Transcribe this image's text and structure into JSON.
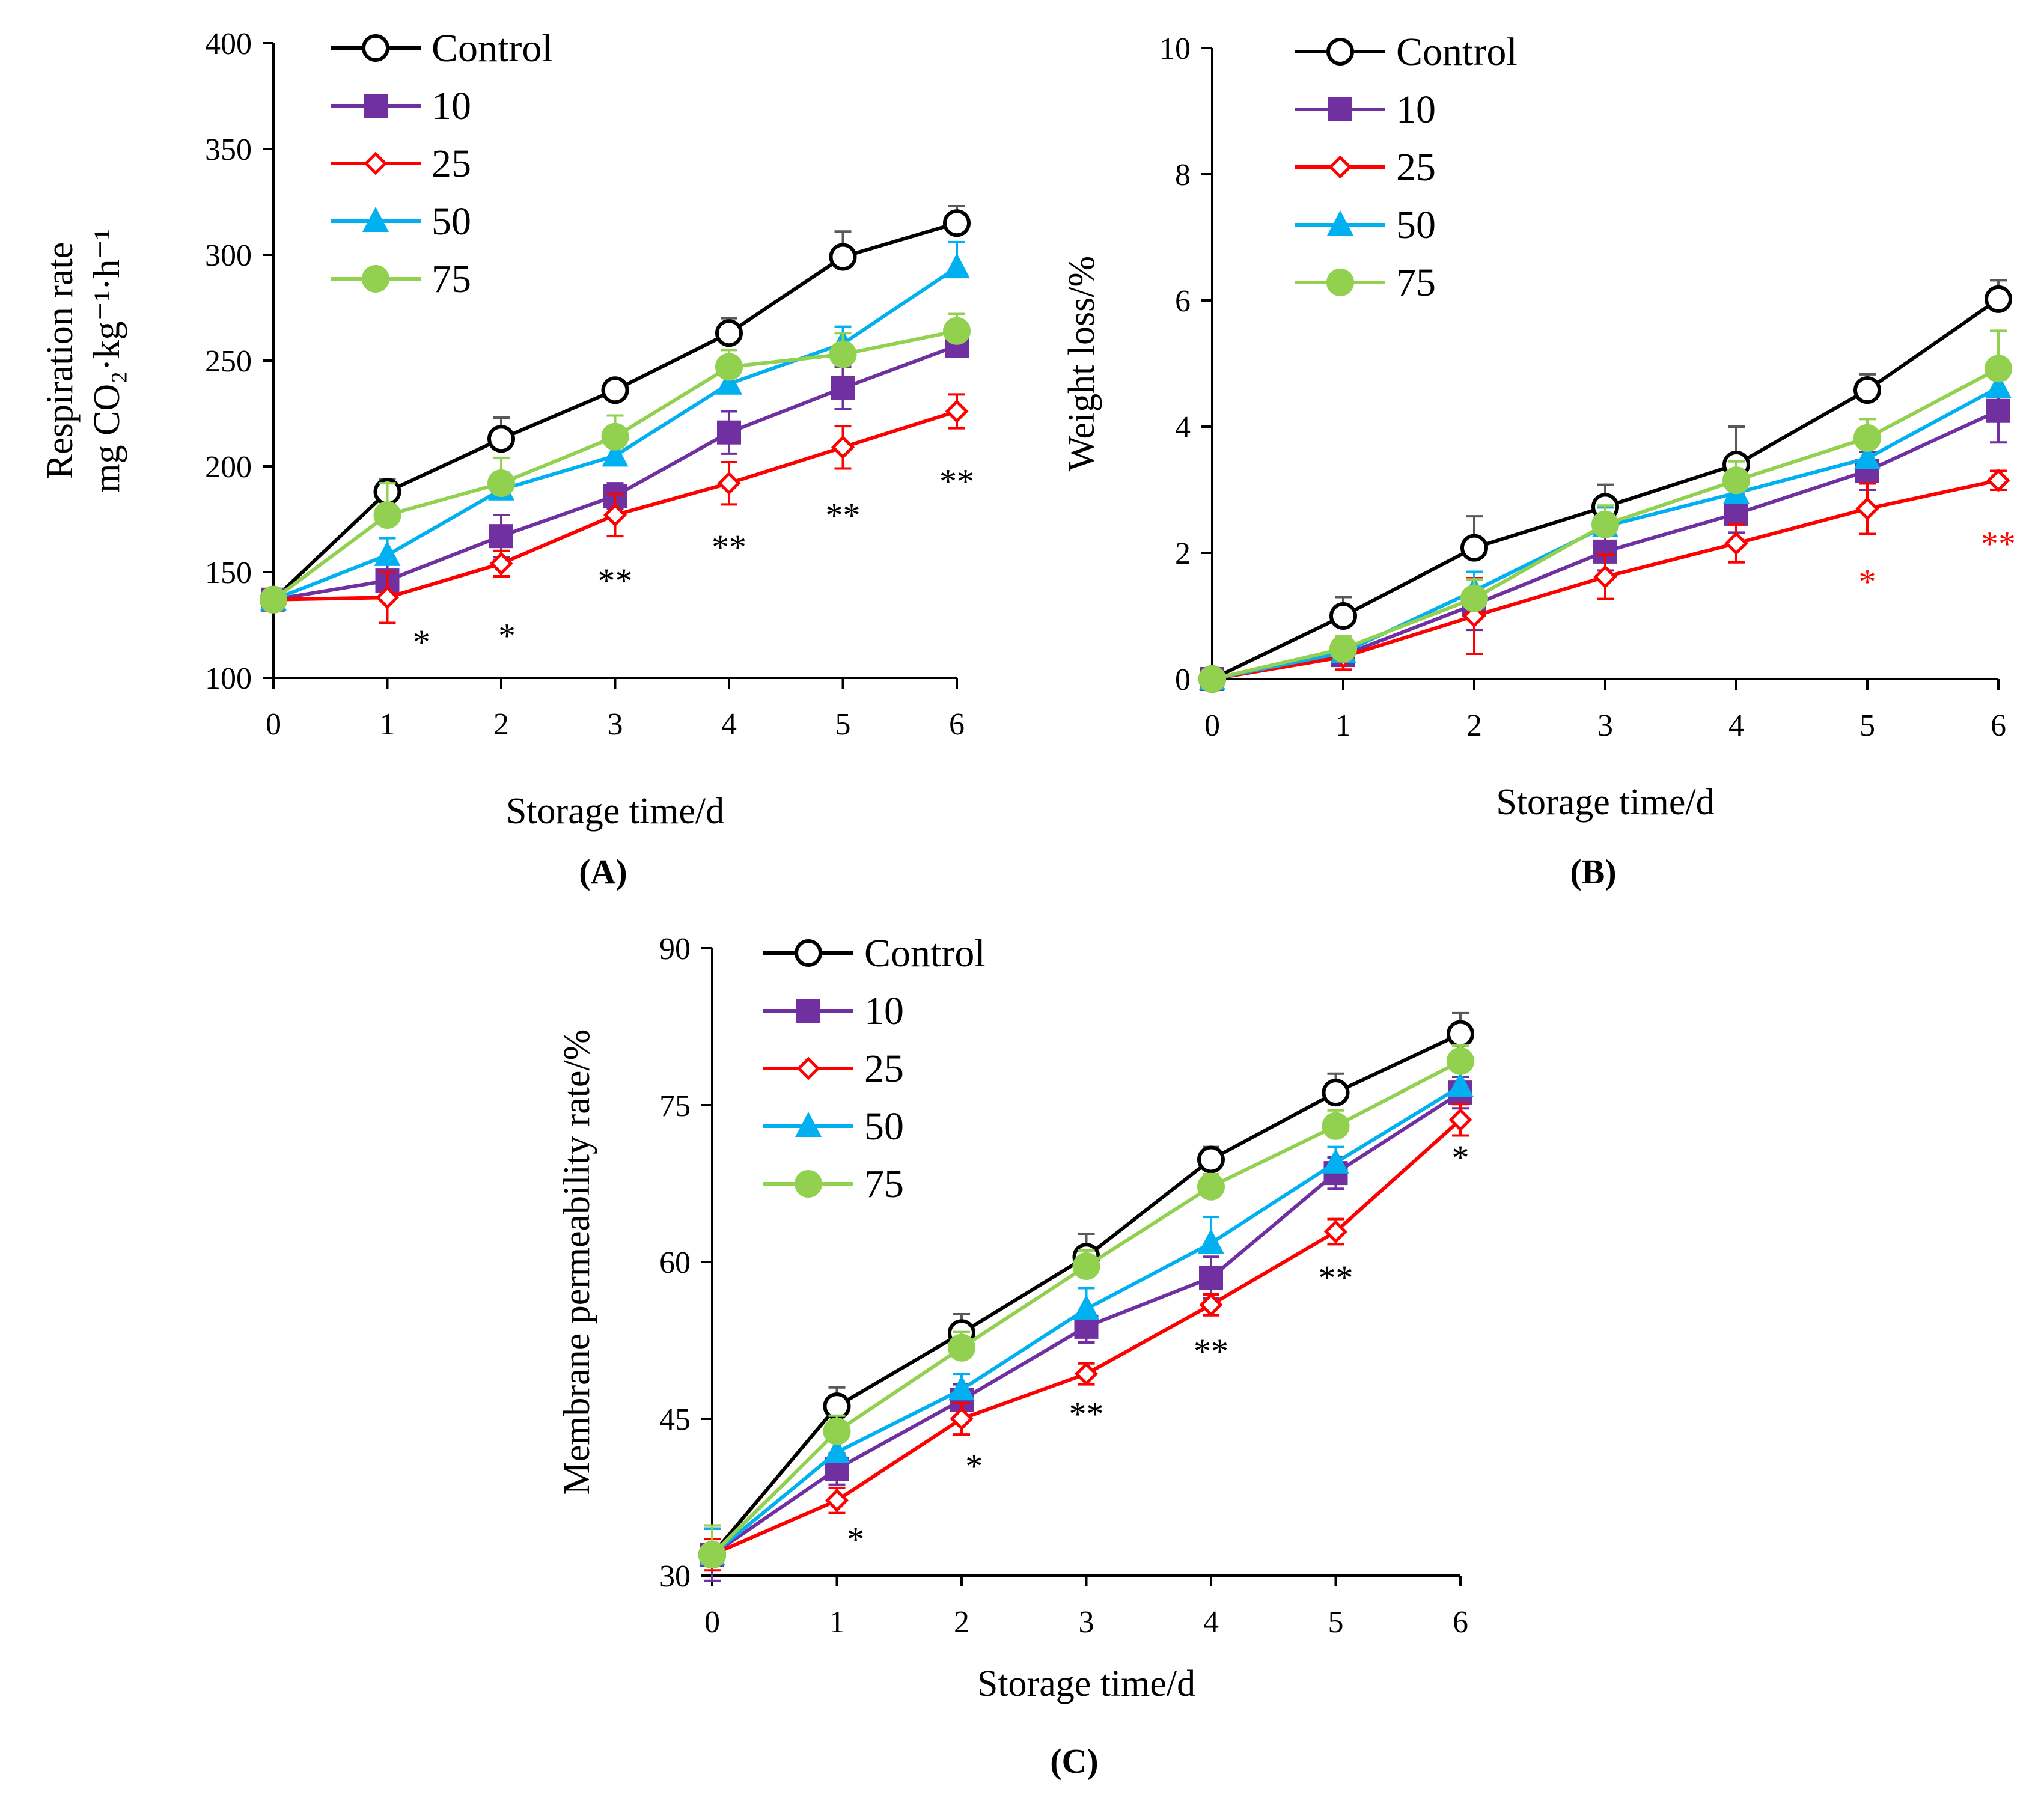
{
  "chart_data": [
    {
      "type": "line",
      "panel_label": "(A)",
      "xlabel": "Storage time/d",
      "ylabel_line1": "Respiration rate",
      "ylabel_line2": "mg CO₂·kg⁻¹·h⁻¹",
      "x": [
        0,
        1,
        2,
        3,
        4,
        5,
        6
      ],
      "xlim": [
        0,
        6
      ],
      "ylim": [
        100,
        400
      ],
      "yticks": [
        100,
        150,
        200,
        250,
        300,
        350,
        400
      ],
      "legend_position": "top-left",
      "series": [
        {
          "name": "Control",
          "color": "#000000",
          "marker": "circle-open",
          "values": [
            137,
            188,
            213,
            236,
            263,
            299,
            315
          ],
          "errors": [
            4,
            6,
            10,
            4,
            7,
            12,
            8
          ]
        },
        {
          "name": "10",
          "color": "#7030A0",
          "marker": "square",
          "values": [
            137,
            146,
            167,
            186,
            216,
            237,
            257
          ],
          "errors": [
            4,
            8,
            10,
            6,
            10,
            10,
            5
          ]
        },
        {
          "name": "25",
          "color": "#FF0000",
          "marker": "diamond-open",
          "values": [
            137,
            138,
            154,
            177,
            192,
            209,
            226
          ],
          "errors": [
            4,
            12,
            6,
            10,
            10,
            10,
            8
          ]
        },
        {
          "name": "50",
          "color": "#00B0F0",
          "marker": "triangle",
          "values": [
            137,
            158,
            189,
            205,
            239,
            258,
            294
          ],
          "errors": [
            4,
            8,
            8,
            6,
            8,
            8,
            12
          ]
        },
        {
          "name": "75",
          "color": "#92D050",
          "marker": "circle",
          "values": [
            137,
            177,
            192,
            214,
            247,
            253,
            264
          ],
          "errors": [
            4,
            15,
            12,
            10,
            8,
            10,
            8
          ]
        }
      ],
      "annotations": [
        {
          "text": "*",
          "x": 1.3,
          "y": 117,
          "color": "#000000"
        },
        {
          "text": "*",
          "x": 2.05,
          "y": 120,
          "color": "#000000"
        },
        {
          "text": "**",
          "x": 3.0,
          "y": 146,
          "color": "#000000"
        },
        {
          "text": "**",
          "x": 4.0,
          "y": 162,
          "color": "#000000"
        },
        {
          "text": "**",
          "x": 5.0,
          "y": 177,
          "color": "#000000"
        },
        {
          "text": "**",
          "x": 6.0,
          "y": 193,
          "color": "#000000"
        }
      ]
    },
    {
      "type": "line",
      "panel_label": "(B)",
      "xlabel": "Storage time/d",
      "ylabel_line1": "Weight loss/%",
      "x": [
        0,
        1,
        2,
        3,
        4,
        5,
        6
      ],
      "xlim": [
        0,
        6
      ],
      "ylim": [
        0,
        10
      ],
      "yticks": [
        0,
        2,
        4,
        6,
        8,
        10
      ],
      "legend_position": "top-left",
      "series": [
        {
          "name": "Control",
          "color": "#000000",
          "marker": "circle-open",
          "values": [
            0,
            1.0,
            2.08,
            2.73,
            3.4,
            4.58,
            6.02
          ],
          "errors": [
            0,
            0.3,
            0.5,
            0.35,
            0.6,
            0.25,
            0.3
          ]
        },
        {
          "name": "10",
          "color": "#7030A0",
          "marker": "square",
          "values": [
            0,
            0.38,
            1.18,
            2.02,
            2.62,
            3.3,
            4.25
          ],
          "errors": [
            0,
            0.15,
            0.4,
            0.3,
            0.3,
            0.3,
            0.5
          ]
        },
        {
          "name": "25",
          "color": "#FF0000",
          "marker": "diamond-open",
          "values": [
            0,
            0.35,
            1.0,
            1.62,
            2.15,
            2.7,
            3.15
          ],
          "errors": [
            0,
            0.2,
            0.6,
            0.35,
            0.3,
            0.4,
            0.15
          ]
        },
        {
          "name": "50",
          "color": "#00B0F0",
          "marker": "triangle",
          "values": [
            0,
            0.42,
            1.4,
            2.42,
            2.95,
            3.5,
            4.62
          ],
          "errors": [
            0,
            0.15,
            0.3,
            0.3,
            0.3,
            0.3,
            0.35
          ]
        },
        {
          "name": "75",
          "color": "#92D050",
          "marker": "circle",
          "values": [
            0,
            0.48,
            1.28,
            2.45,
            3.15,
            3.82,
            4.92
          ],
          "errors": [
            0,
            0.2,
            0.3,
            0.3,
            0.3,
            0.3,
            0.6
          ]
        }
      ],
      "annotations": [
        {
          "text": "*",
          "x": 5.0,
          "y": 1.55,
          "color": "#FF0000"
        },
        {
          "text": "**",
          "x": 6.0,
          "y": 2.15,
          "color": "#FF0000"
        }
      ]
    },
    {
      "type": "line",
      "panel_label": "(C)",
      "xlabel": "Storage time/d",
      "ylabel_line1": "Membrane permeability rate/%",
      "x": [
        0,
        1,
        2,
        3,
        4,
        5,
        6
      ],
      "xlim": [
        0,
        6
      ],
      "ylim": [
        30,
        90
      ],
      "yticks": [
        30,
        45,
        60,
        75,
        90
      ],
      "legend_position": "top-left",
      "series": [
        {
          "name": "Control",
          "color": "#000000",
          "marker": "circle-open",
          "values": [
            32,
            46.2,
            53.2,
            60.5,
            69.8,
            76.2,
            81.8
          ],
          "errors": [
            2.5,
            1.8,
            1.8,
            2.2,
            1.2,
            1.8,
            2.0
          ]
        },
        {
          "name": "10",
          "color": "#7030A0",
          "marker": "square",
          "values": [
            32,
            40.2,
            46.8,
            53.8,
            58.5,
            68.5,
            76.2
          ],
          "errors": [
            2.5,
            1.5,
            1.5,
            1.5,
            2.0,
            1.5,
            1.5
          ]
        },
        {
          "name": "25",
          "color": "#FF0000",
          "marker": "diamond-open",
          "values": [
            32,
            37.2,
            45.0,
            49.3,
            55.9,
            62.9,
            73.6
          ],
          "errors": [
            1.5,
            1.2,
            1.5,
            1.0,
            1.0,
            1.2,
            1.5
          ]
        },
        {
          "name": "50",
          "color": "#00B0F0",
          "marker": "triangle",
          "values": [
            32,
            41.8,
            47.8,
            55.5,
            61.8,
            69.5,
            76.8
          ],
          "errors": [
            2.5,
            1.5,
            1.5,
            2.0,
            2.5,
            1.5,
            1.5
          ]
        },
        {
          "name": "75",
          "color": "#92D050",
          "marker": "circle",
          "values": [
            32,
            43.8,
            51.8,
            59.6,
            67.2,
            73.0,
            79.2
          ],
          "errors": [
            2.8,
            1.5,
            1.5,
            1.5,
            1.2,
            1.5,
            1.5
          ]
        }
      ],
      "annotations": [
        {
          "text": "*",
          "x": 1.15,
          "y": 33.5,
          "color": "#000000"
        },
        {
          "text": "*",
          "x": 2.1,
          "y": 40.5,
          "color": "#000000"
        },
        {
          "text": "**",
          "x": 3.0,
          "y": 45.5,
          "color": "#000000"
        },
        {
          "text": "**",
          "x": 4.0,
          "y": 51.5,
          "color": "#000000"
        },
        {
          "text": "**",
          "x": 5.0,
          "y": 58.5,
          "color": "#000000"
        },
        {
          "text": "*",
          "x": 6.0,
          "y": 70.0,
          "color": "#000000"
        }
      ]
    }
  ]
}
